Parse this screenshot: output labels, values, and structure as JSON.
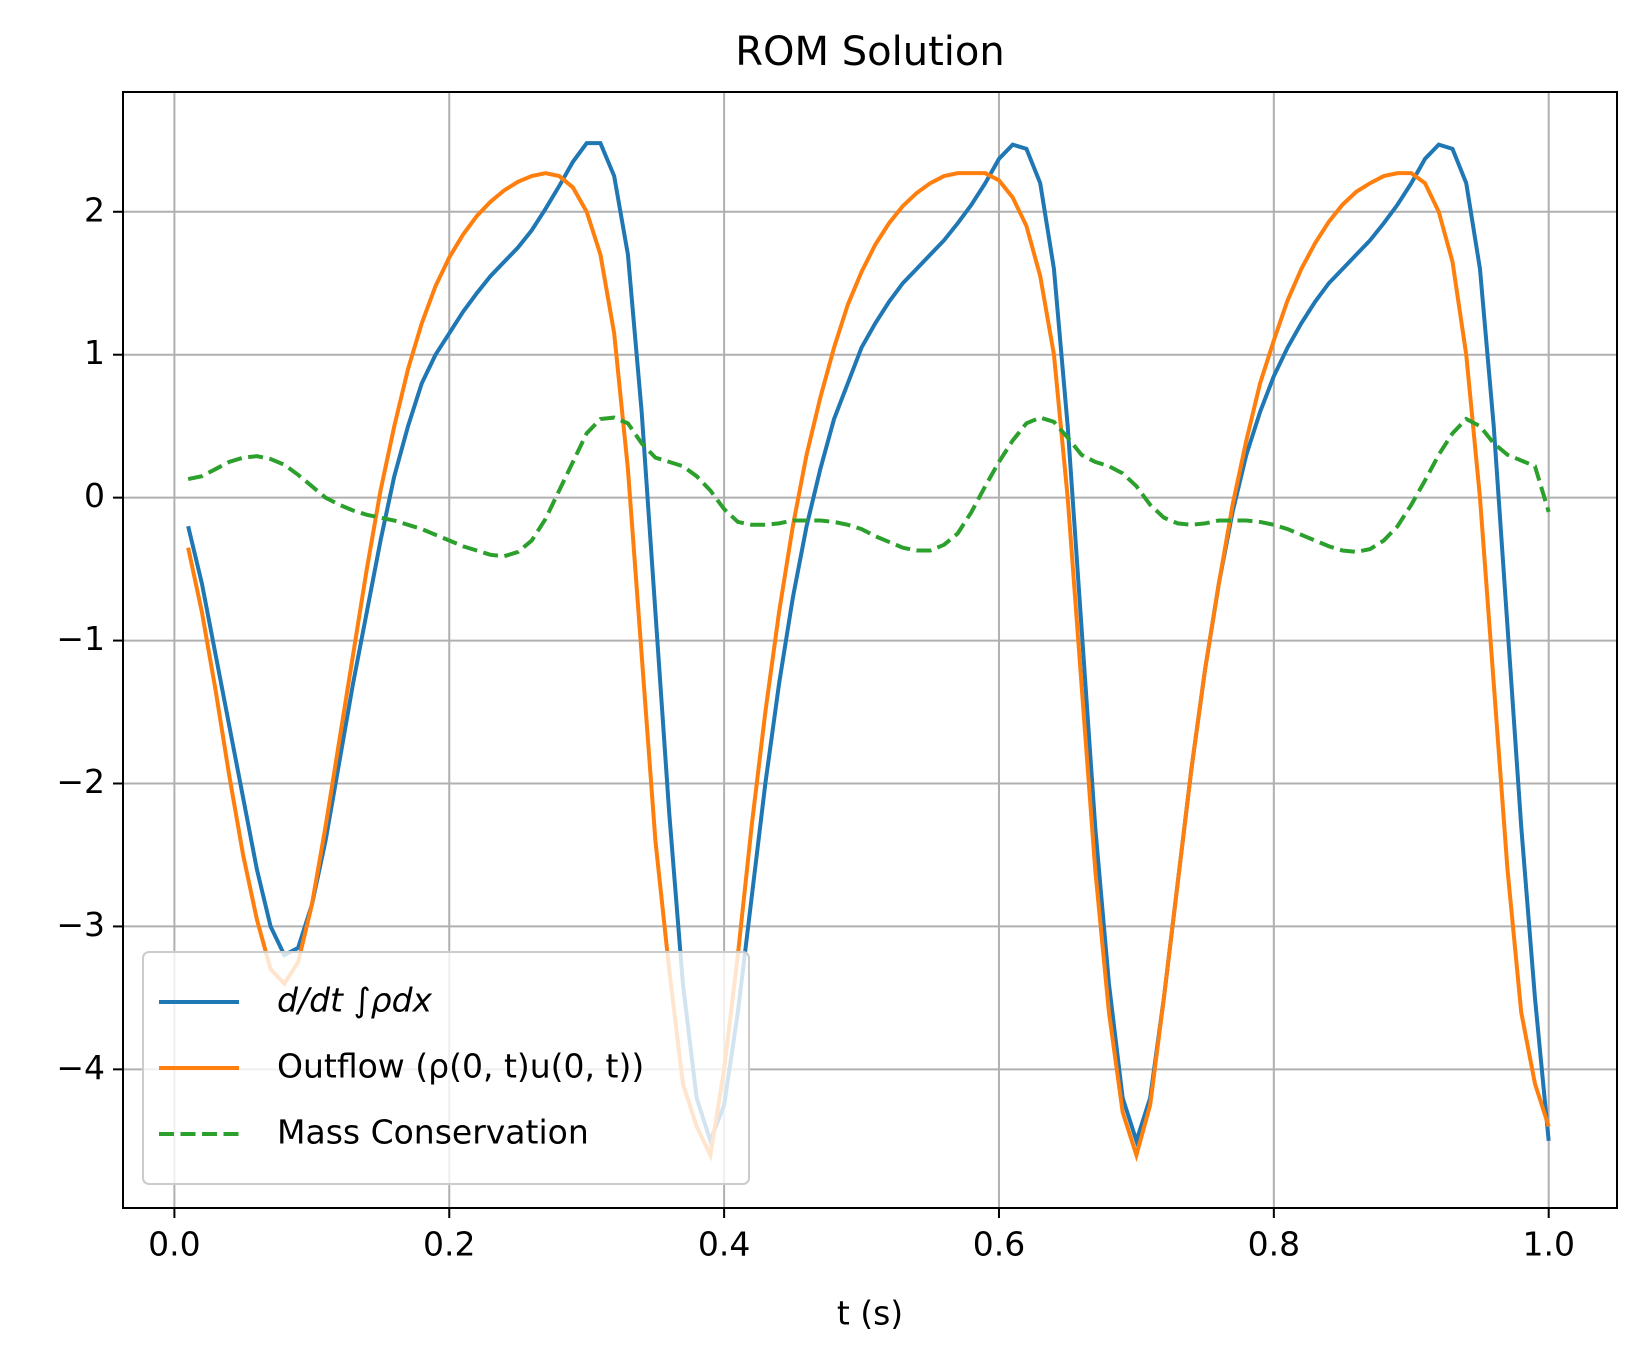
{
  "chart_data": {
    "type": "line",
    "title": "ROM Solution",
    "x_label": "t (s)",
    "x": [
      0.01,
      0.02,
      0.03,
      0.04,
      0.05,
      0.06,
      0.07,
      0.08,
      0.09,
      0.1,
      0.11,
      0.12,
      0.13,
      0.14,
      0.15,
      0.16,
      0.17,
      0.18,
      0.19,
      0.2,
      0.21,
      0.22,
      0.23,
      0.24,
      0.25,
      0.26,
      0.27,
      0.28,
      0.29,
      0.3,
      0.31,
      0.32,
      0.33,
      0.34,
      0.35,
      0.36,
      0.37,
      0.38,
      0.39,
      0.4,
      0.41,
      0.42,
      0.43,
      0.44,
      0.45,
      0.46,
      0.47,
      0.48,
      0.49,
      0.5,
      0.51,
      0.52,
      0.53,
      0.54,
      0.55,
      0.56,
      0.57,
      0.58,
      0.59,
      0.6,
      0.61,
      0.62,
      0.63,
      0.64,
      0.65,
      0.66,
      0.67,
      0.68,
      0.69,
      0.7,
      0.71,
      0.72,
      0.73,
      0.74,
      0.75,
      0.76,
      0.77,
      0.78,
      0.79,
      0.8,
      0.81,
      0.82,
      0.83,
      0.84,
      0.85,
      0.86,
      0.87,
      0.88,
      0.89,
      0.9,
      0.91,
      0.92,
      0.93,
      0.94,
      0.95,
      0.96,
      0.97,
      0.98,
      0.99,
      1.0
    ],
    "series": [
      {
        "name": "d/dt ∫ρdx",
        "color": "#1f77b4",
        "style": "solid",
        "values": [
          -0.2,
          -0.6,
          -1.1,
          -1.6,
          -2.1,
          -2.6,
          -3.0,
          -3.2,
          -3.15,
          -2.85,
          -2.4,
          -1.85,
          -1.3,
          -0.8,
          -0.3,
          0.15,
          0.5,
          0.8,
          1.0,
          1.15,
          1.3,
          1.43,
          1.55,
          1.65,
          1.75,
          1.87,
          2.02,
          2.18,
          2.35,
          2.48,
          2.48,
          2.25,
          1.7,
          0.6,
          -0.8,
          -2.2,
          -3.4,
          -4.2,
          -4.5,
          -4.25,
          -3.6,
          -2.8,
          -2.0,
          -1.3,
          -0.7,
          -0.2,
          0.2,
          0.55,
          0.8,
          1.05,
          1.22,
          1.37,
          1.5,
          1.6,
          1.7,
          1.8,
          1.92,
          2.05,
          2.2,
          2.37,
          2.47,
          2.44,
          2.2,
          1.6,
          0.5,
          -0.9,
          -2.3,
          -3.4,
          -4.2,
          -4.5,
          -4.2,
          -3.5,
          -2.7,
          -1.9,
          -1.2,
          -0.6,
          -0.1,
          0.3,
          0.6,
          0.85,
          1.05,
          1.22,
          1.37,
          1.5,
          1.6,
          1.7,
          1.8,
          1.92,
          2.05,
          2.2,
          2.37,
          2.47,
          2.44,
          2.2,
          1.6,
          0.5,
          -0.9,
          -2.3,
          -3.5,
          -4.5
        ]
      },
      {
        "name": "Outflow (ρ(0, t)u(0, t))",
        "color": "#ff7f0e",
        "style": "solid",
        "values": [
          -0.35,
          -0.8,
          -1.35,
          -1.95,
          -2.5,
          -2.95,
          -3.3,
          -3.4,
          -3.25,
          -2.85,
          -2.3,
          -1.7,
          -1.1,
          -0.5,
          0.05,
          0.5,
          0.9,
          1.22,
          1.48,
          1.68,
          1.84,
          1.97,
          2.07,
          2.15,
          2.21,
          2.25,
          2.27,
          2.25,
          2.17,
          2.0,
          1.7,
          1.15,
          0.2,
          -1.1,
          -2.4,
          -3.3,
          -4.1,
          -4.4,
          -4.6,
          -4.0,
          -3.2,
          -2.3,
          -1.5,
          -0.8,
          -0.2,
          0.3,
          0.7,
          1.05,
          1.35,
          1.58,
          1.77,
          1.92,
          2.04,
          2.13,
          2.2,
          2.25,
          2.27,
          2.27,
          2.27,
          2.22,
          2.1,
          1.9,
          1.55,
          1.0,
          0.0,
          -1.3,
          -2.6,
          -3.6,
          -4.3,
          -4.6,
          -4.25,
          -3.5,
          -2.7,
          -1.9,
          -1.2,
          -0.6,
          -0.05,
          0.4,
          0.8,
          1.1,
          1.38,
          1.6,
          1.78,
          1.93,
          2.05,
          2.14,
          2.2,
          2.25,
          2.27,
          2.27,
          2.2,
          2.0,
          1.65,
          1.0,
          0.0,
          -1.3,
          -2.6,
          -3.6,
          -4.1,
          -4.4
        ]
      },
      {
        "name": "Mass Conservation",
        "color": "#2ca02c",
        "style": "dashed",
        "values": [
          0.13,
          0.15,
          0.2,
          0.25,
          0.28,
          0.29,
          0.27,
          0.23,
          0.16,
          0.08,
          0.0,
          -0.05,
          -0.09,
          -0.12,
          -0.14,
          -0.16,
          -0.19,
          -0.22,
          -0.26,
          -0.3,
          -0.34,
          -0.37,
          -0.4,
          -0.41,
          -0.38,
          -0.3,
          -0.15,
          0.05,
          0.25,
          0.45,
          0.55,
          0.56,
          0.52,
          0.38,
          0.28,
          0.25,
          0.22,
          0.15,
          0.05,
          -0.08,
          -0.17,
          -0.19,
          -0.19,
          -0.18,
          -0.16,
          -0.16,
          -0.16,
          -0.17,
          -0.19,
          -0.22,
          -0.27,
          -0.31,
          -0.35,
          -0.37,
          -0.37,
          -0.33,
          -0.25,
          -0.1,
          0.08,
          0.25,
          0.4,
          0.52,
          0.56,
          0.53,
          0.42,
          0.3,
          0.25,
          0.22,
          0.17,
          0.08,
          -0.05,
          -0.14,
          -0.18,
          -0.19,
          -0.18,
          -0.16,
          -0.16,
          -0.16,
          -0.17,
          -0.19,
          -0.22,
          -0.26,
          -0.3,
          -0.34,
          -0.37,
          -0.38,
          -0.36,
          -0.3,
          -0.2,
          -0.05,
          0.12,
          0.3,
          0.45,
          0.55,
          0.5,
          0.38,
          0.3,
          0.26,
          0.22,
          -0.1
        ]
      }
    ],
    "xlim": [
      -0.0374,
      1.0497
    ],
    "xticks": [
      {
        "value": 0,
        "label": "0.0"
      },
      0.2,
      0.4,
      0.6,
      0.8,
      {
        "value": 1,
        "label": "1.0"
      }
    ],
    "ylim": [
      -4.97,
      2.838
    ],
    "yticks": [
      {
        "value": -4,
        "label": "−4"
      },
      {
        "value": -3,
        "label": "−3"
      },
      {
        "value": -2,
        "label": "−2"
      },
      {
        "value": -1,
        "label": "−1"
      },
      0,
      1,
      2
    ],
    "grid": true,
    "legend": "lower left"
  }
}
